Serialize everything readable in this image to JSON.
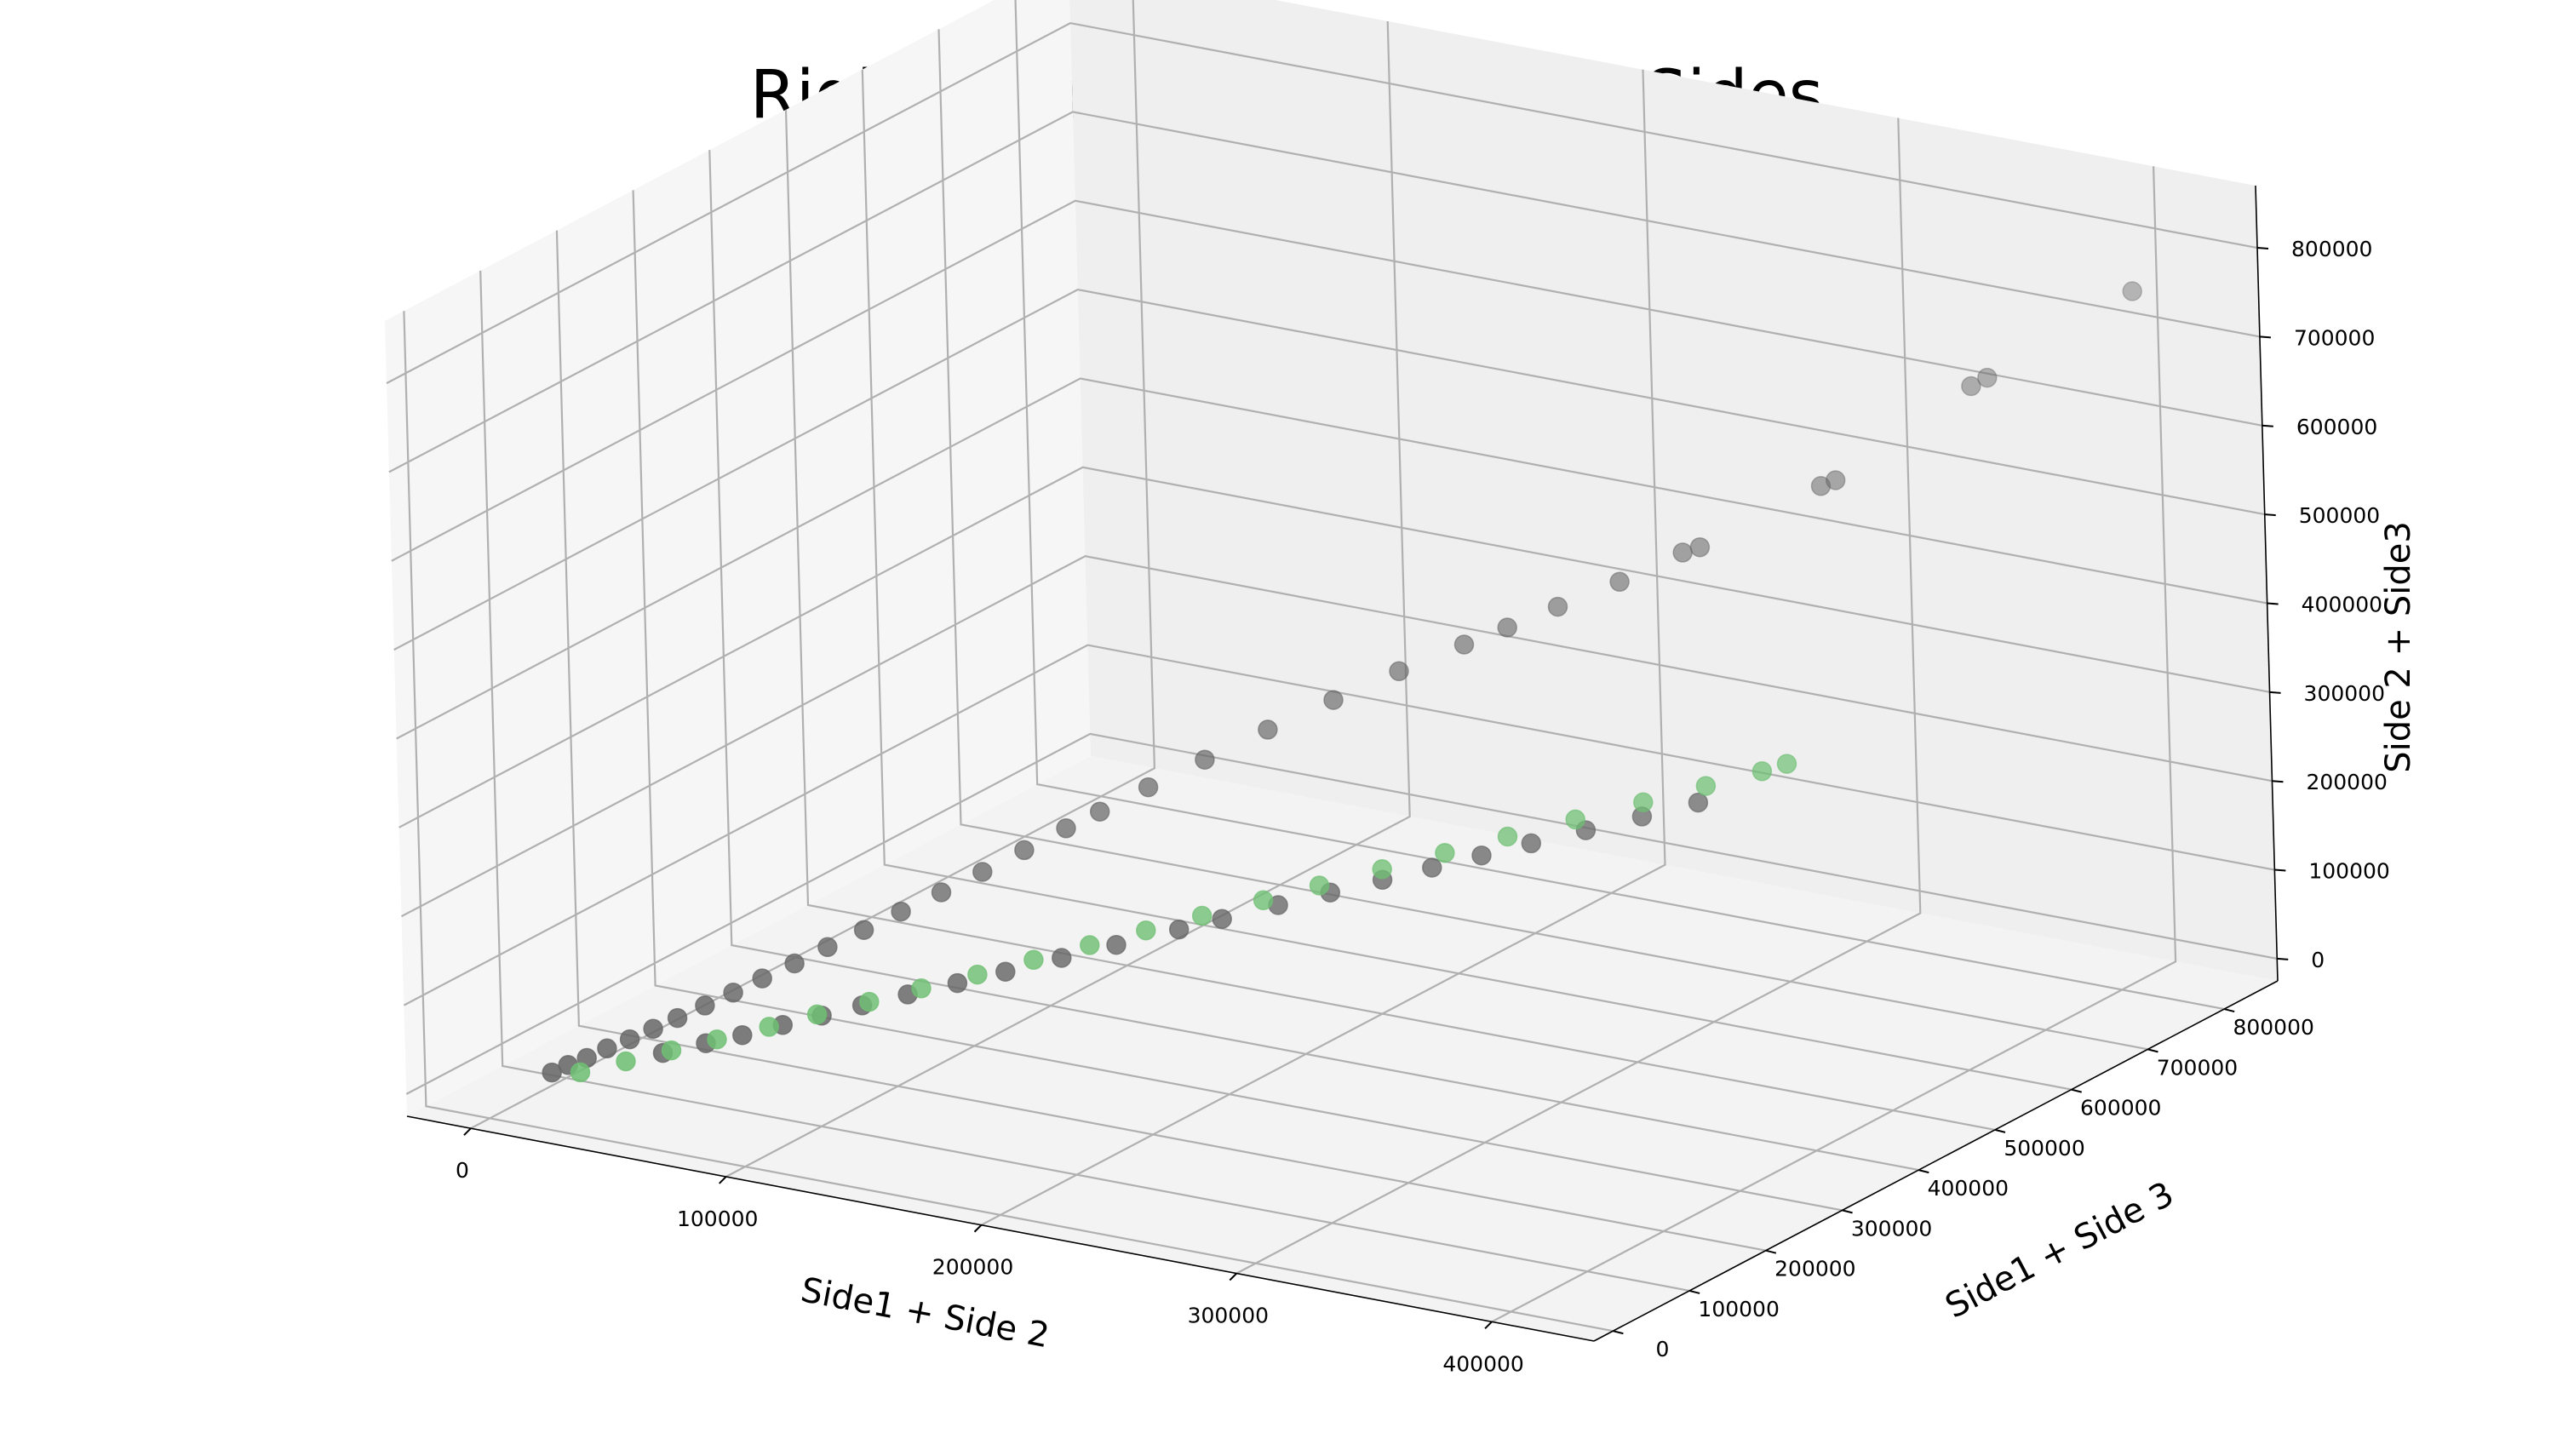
{
  "chart_data": {
    "type": "scatter3d",
    "title": "Right Triangle with Sum of Sides",
    "xlabel": "Side1 + Side 2",
    "ylabel": "Side1 + Side 3",
    "zlabel": "Side 2 + Side3",
    "xlim": [
      -25000,
      440000
    ],
    "ylim": [
      -25000,
      870000
    ],
    "zlim": [
      -25000,
      870000
    ],
    "x_ticks": [
      "0",
      "100000",
      "200000",
      "300000",
      "400000"
    ],
    "y_ticks": [
      "0",
      "100000",
      "200000",
      "300000",
      "400000",
      "500000",
      "600000",
      "700000",
      "800000"
    ],
    "z_ticks": [
      "0",
      "100000",
      "200000",
      "300000",
      "400000",
      "500000",
      "600000",
      "700000",
      "800000"
    ],
    "grid": true,
    "colors": {
      "gray_series": "#666666",
      "green_series": "#6fbf73"
    },
    "series": [
      {
        "color": "#666666",
        "points": [
          [
            17000,
            26000,
            24000
          ],
          [
            21000,
            34000,
            31000
          ],
          [
            26000,
            42000,
            38000
          ],
          [
            31000,
            52000,
            47000
          ],
          [
            37000,
            62000,
            56000
          ],
          [
            43000,
            73000,
            66000
          ],
          [
            49000,
            85000,
            76000
          ],
          [
            56000,
            98000,
            88000
          ],
          [
            63000,
            112000,
            100000
          ],
          [
            70000,
            127000,
            113000
          ],
          [
            78000,
            143000,
            127000
          ],
          [
            86000,
            160000,
            142000
          ],
          [
            95000,
            178000,
            158000
          ],
          [
            104000,
            197000,
            175000
          ],
          [
            114000,
            217000,
            193000
          ],
          [
            124000,
            238000,
            212000
          ],
          [
            134000,
            260000,
            232000
          ],
          [
            144000,
            282000,
            252000
          ],
          [
            152000,
            300000,
            267000
          ],
          [
            164000,
            324000,
            290000
          ],
          [
            178000,
            352000,
            316000
          ],
          [
            194000,
            382000,
            345000
          ],
          [
            211000,
            412000,
            374000
          ],
          [
            228000,
            442000,
            402000
          ],
          [
            246000,
            468000,
            430000
          ],
          [
            258000,
            485000,
            448000
          ],
          [
            272000,
            505000,
            470000
          ],
          [
            289000,
            530000,
            496000
          ],
          [
            305000,
            560000,
            524000
          ],
          [
            310000,
            566000,
            530000
          ],
          [
            340000,
            626000,
            588000
          ],
          [
            344000,
            632000,
            594000
          ],
          [
            374000,
            712000,
            680000
          ],
          [
            378000,
            720000,
            688000
          ],
          [
            408000,
            812000,
            760000
          ],
          [
            56000,
            42000,
            60000
          ],
          [
            70000,
            52000,
            74000
          ],
          [
            82000,
            60000,
            86000
          ],
          [
            95000,
            70000,
            100000
          ],
          [
            108000,
            78000,
            114000
          ],
          [
            121000,
            88000,
            128000
          ],
          [
            136000,
            98000,
            144000
          ],
          [
            152000,
            110000,
            160000
          ],
          [
            168000,
            120000,
            177000
          ],
          [
            186000,
            134000,
            196000
          ],
          [
            204000,
            146000,
            215000
          ],
          [
            224000,
            162000,
            236000
          ],
          [
            238000,
            172000,
            251000
          ],
          [
            256000,
            186000,
            270000
          ],
          [
            273000,
            198000,
            288000
          ],
          [
            290000,
            210000,
            306000
          ],
          [
            306000,
            222000,
            323000
          ],
          [
            322000,
            234000,
            340000
          ],
          [
            338000,
            246000,
            357000
          ],
          [
            356000,
            258000,
            376000
          ],
          [
            374000,
            272000,
            395000
          ],
          [
            392000,
            286000,
            414000
          ]
        ]
      },
      {
        "color": "#6fbf73",
        "points": [
          [
            30000,
            20000,
            34000
          ],
          [
            45000,
            30000,
            50000
          ],
          [
            60000,
            40000,
            66000
          ],
          [
            75000,
            50000,
            82000
          ],
          [
            92000,
            62000,
            100000
          ],
          [
            108000,
            72000,
            118000
          ],
          [
            125000,
            84000,
            136000
          ],
          [
            142000,
            96000,
            155000
          ],
          [
            160000,
            110000,
            174000
          ],
          [
            178000,
            124000,
            194000
          ],
          [
            196000,
            138000,
            214000
          ],
          [
            214000,
            152000,
            234000
          ],
          [
            232000,
            166000,
            254000
          ],
          [
            252000,
            180000,
            276000
          ],
          [
            270000,
            194000,
            296000
          ],
          [
            290000,
            210000,
            318000
          ],
          [
            310000,
            226000,
            340000
          ],
          [
            330000,
            242000,
            362000
          ],
          [
            352000,
            258000,
            386000
          ],
          [
            374000,
            274000,
            410000
          ],
          [
            394000,
            290000,
            432000
          ],
          [
            412000,
            304000,
            452000
          ],
          [
            420000,
            310000,
            462000
          ]
        ]
      }
    ]
  }
}
